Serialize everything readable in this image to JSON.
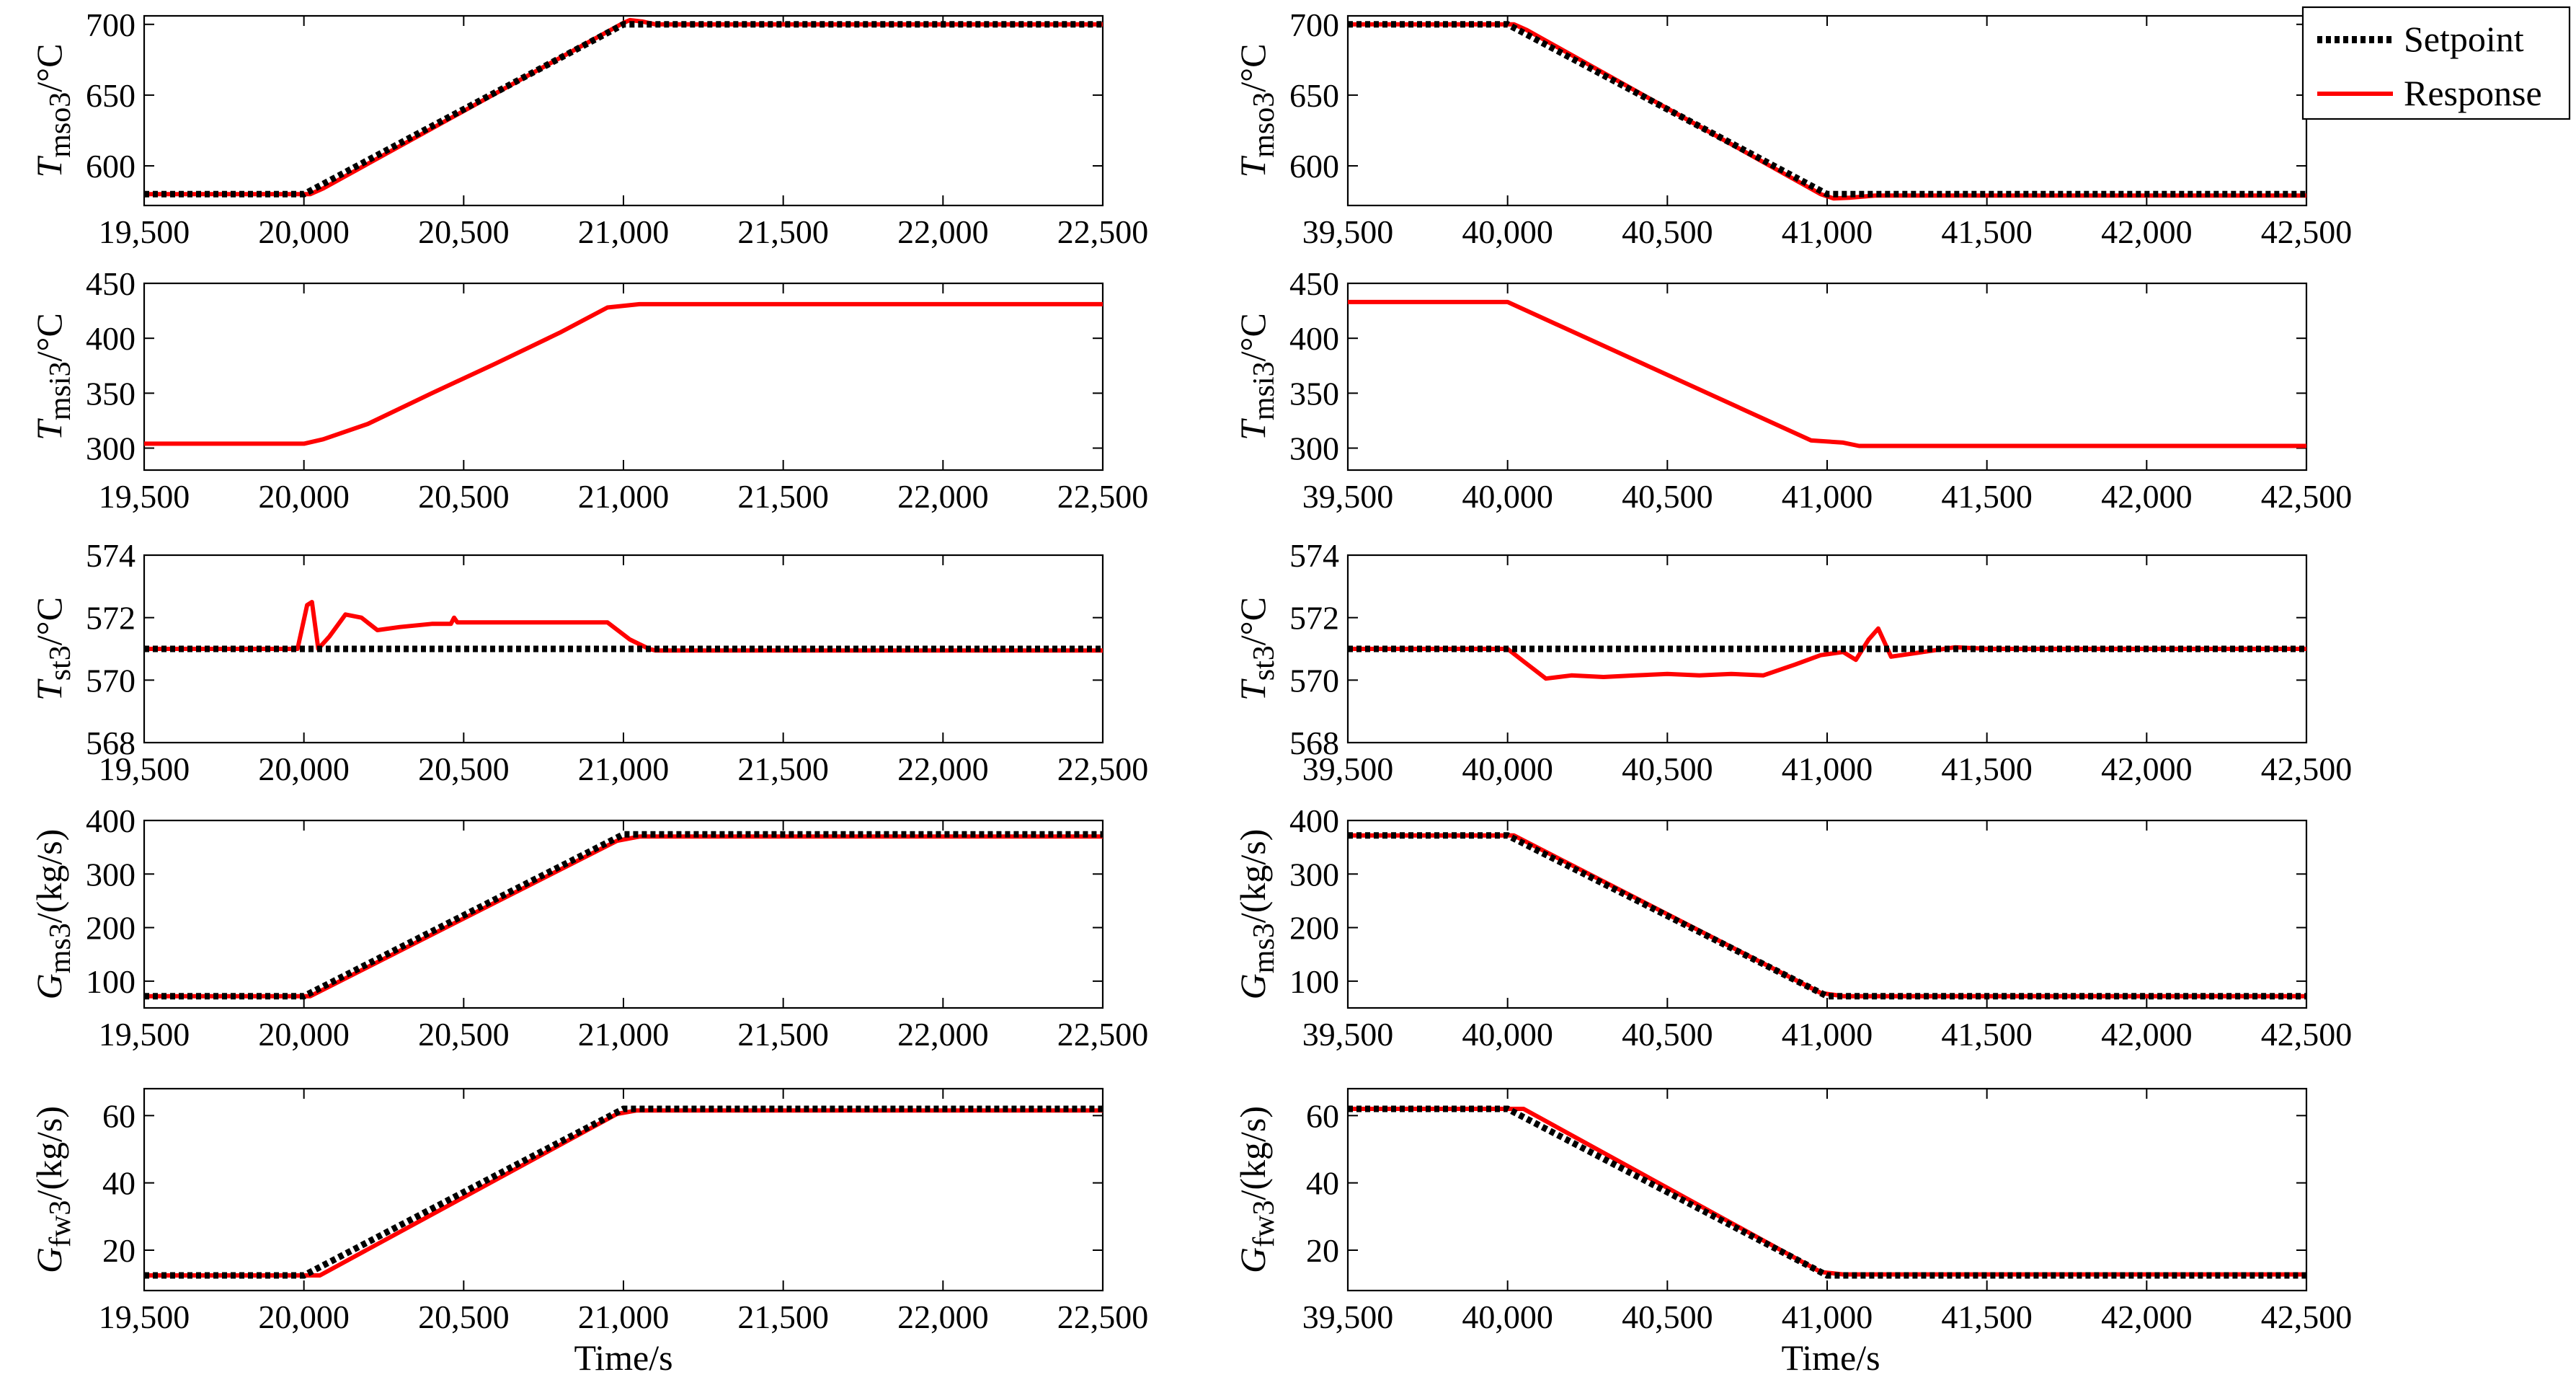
{
  "legend": {
    "setpoint_label": "Setpoint",
    "response_label": "Response",
    "setpoint_color": "#000000",
    "response_color": "#ff0000"
  },
  "xlabel": "Time/s",
  "chart_data": [
    {
      "type": "line",
      "column": 0,
      "row": 0,
      "ylabel_sym": "T",
      "ylabel_sub": "mso3",
      "ylabel_unit": "/°C",
      "xlim": [
        19500,
        22500
      ],
      "xticks": [
        19500,
        20000,
        20500,
        21000,
        21500,
        22000,
        22500
      ],
      "xtick_labels": [
        "19,500",
        "20,000",
        "20,500",
        "21,000",
        "21,500",
        "22,000",
        "22,500"
      ],
      "ylim": [
        572,
        706
      ],
      "yticks": [
        600,
        650,
        700
      ],
      "ytick_labels": [
        "600",
        "650",
        "700"
      ],
      "series": [
        {
          "name": "Setpoint",
          "style": "dotted",
          "x": [
            19500,
            20000,
            21000,
            22500
          ],
          "y": [
            580,
            580,
            700,
            700
          ]
        },
        {
          "name": "Response",
          "style": "solid",
          "x": [
            19500,
            20020,
            20060,
            21000,
            21020,
            21060,
            21100,
            22500
          ],
          "y": [
            580,
            580,
            584,
            701,
            703,
            702,
            700,
            700
          ]
        }
      ]
    },
    {
      "type": "line",
      "column": 0,
      "row": 1,
      "ylabel_sym": "T",
      "ylabel_sub": "msi3",
      "ylabel_unit": "/°C",
      "xlim": [
        19500,
        22500
      ],
      "xticks": [
        19500,
        20000,
        20500,
        21000,
        21500,
        22000,
        22500
      ],
      "xtick_labels": [
        "19,500",
        "20,000",
        "20,500",
        "21,000",
        "21,500",
        "22,000",
        "22,500"
      ],
      "ylim": [
        280,
        450
      ],
      "yticks": [
        300,
        350,
        400,
        450
      ],
      "ytick_labels": [
        "300",
        "350",
        "400",
        "450"
      ],
      "series": [
        {
          "name": "Response",
          "style": "solid",
          "x": [
            19500,
            20000,
            20060,
            20200,
            20400,
            20600,
            20800,
            20950,
            21050,
            22500
          ],
          "y": [
            304,
            304,
            308,
            322,
            350,
            377,
            405,
            428,
            431,
            431
          ]
        }
      ]
    },
    {
      "type": "line",
      "column": 0,
      "row": 2,
      "ylabel_sym": "T",
      "ylabel_sub": "st3",
      "ylabel_unit": "/°C",
      "xlim": [
        19500,
        22500
      ],
      "xticks": [
        19500,
        20000,
        20500,
        21000,
        21500,
        22000,
        22500
      ],
      "xtick_labels": [
        "19,500",
        "20,000",
        "20,500",
        "21,000",
        "21,500",
        "22,000",
        "22,500"
      ],
      "ylim": [
        568,
        574
      ],
      "yticks": [
        568,
        570,
        572,
        574
      ],
      "ytick_labels": [
        "568",
        "570",
        "572",
        "574"
      ],
      "series": [
        {
          "name": "Setpoint",
          "style": "dotted",
          "x": [
            19500,
            22500
          ],
          "y": [
            571,
            571
          ]
        },
        {
          "name": "Response",
          "style": "solid",
          "x": [
            19500,
            19980,
            20010,
            20025,
            20045,
            20080,
            20130,
            20180,
            20230,
            20300,
            20400,
            20460,
            20470,
            20480,
            20950,
            21020,
            21080,
            21100,
            22500
          ],
          "y": [
            571,
            571,
            572.4,
            572.5,
            571,
            571.4,
            572.1,
            572.0,
            571.6,
            571.7,
            571.8,
            571.8,
            572.0,
            571.85,
            571.85,
            571.3,
            571,
            570.95,
            570.95
          ]
        }
      ]
    },
    {
      "type": "line",
      "column": 0,
      "row": 3,
      "ylabel_sym": "G",
      "ylabel_sub": "ms3",
      "ylabel_unit": "/(kg/s)",
      "xlim": [
        19500,
        22500
      ],
      "xticks": [
        19500,
        20000,
        20500,
        21000,
        21500,
        22000,
        22500
      ],
      "xtick_labels": [
        "19,500",
        "20,000",
        "20,500",
        "21,000",
        "21,500",
        "22,000",
        "22,500"
      ],
      "ylim": [
        50,
        400
      ],
      "yticks": [
        100,
        200,
        300,
        400
      ],
      "ytick_labels": [
        "100",
        "200",
        "300",
        "400"
      ],
      "series": [
        {
          "name": "Setpoint",
          "style": "dotted",
          "x": [
            19500,
            20000,
            21000,
            22500
          ],
          "y": [
            72,
            72,
            374,
            374
          ]
        },
        {
          "name": "Response",
          "style": "solid",
          "x": [
            19500,
            20020,
            20980,
            21050,
            22500
          ],
          "y": [
            72,
            72,
            362,
            370,
            370
          ]
        }
      ]
    },
    {
      "type": "line",
      "column": 0,
      "row": 4,
      "ylabel_sym": "G",
      "ylabel_sub": "fw3",
      "ylabel_unit": "/(kg/s)",
      "xlim": [
        19500,
        22500
      ],
      "xticks": [
        19500,
        20000,
        20500,
        21000,
        21500,
        22000,
        22500
      ],
      "xtick_labels": [
        "19,500",
        "20,000",
        "20,500",
        "21,000",
        "21,500",
        "22,000",
        "22,500"
      ],
      "ylim": [
        8,
        68
      ],
      "yticks": [
        20,
        40,
        60
      ],
      "ytick_labels": [
        "20",
        "40",
        "60"
      ],
      "series": [
        {
          "name": "Setpoint",
          "style": "dotted",
          "x": [
            19500,
            20000,
            21000,
            22500
          ],
          "y": [
            12.5,
            12.5,
            62,
            62
          ]
        },
        {
          "name": "Response",
          "style": "solid",
          "x": [
            19500,
            20050,
            20980,
            21040,
            22500
          ],
          "y": [
            12.5,
            12.5,
            60.5,
            61.5,
            61.5
          ]
        }
      ]
    },
    {
      "type": "line",
      "column": 1,
      "row": 0,
      "ylabel_sym": "T",
      "ylabel_sub": "mso3",
      "ylabel_unit": "/°C",
      "xlim": [
        39500,
        42500
      ],
      "xticks": [
        39500,
        40000,
        40500,
        41000,
        41500,
        42000,
        42500
      ],
      "xtick_labels": [
        "39,500",
        "40,000",
        "40,500",
        "41,000",
        "41,500",
        "42,000",
        "42,500"
      ],
      "ylim": [
        572,
        706
      ],
      "yticks": [
        600,
        650,
        700
      ],
      "ytick_labels": [
        "600",
        "650",
        "700"
      ],
      "series": [
        {
          "name": "Setpoint",
          "style": "dotted",
          "x": [
            39500,
            40000,
            41000,
            42500
          ],
          "y": [
            700,
            700,
            580,
            580
          ]
        },
        {
          "name": "Response",
          "style": "solid",
          "x": [
            39500,
            40020,
            40060,
            40980,
            41020,
            41070,
            41150,
            42500
          ],
          "y": [
            700,
            700,
            696,
            580,
            577,
            577.5,
            579,
            579
          ]
        }
      ]
    },
    {
      "type": "line",
      "column": 1,
      "row": 1,
      "ylabel_sym": "T",
      "ylabel_sub": "msi3",
      "ylabel_unit": "/°C",
      "xlim": [
        39500,
        42500
      ],
      "xticks": [
        39500,
        40000,
        40500,
        41000,
        41500,
        42000,
        42500
      ],
      "xtick_labels": [
        "39,500",
        "40,000",
        "40,500",
        "41,000",
        "41,500",
        "42,000",
        "42,500"
      ],
      "ylim": [
        280,
        450
      ],
      "yticks": [
        300,
        350,
        400,
        450
      ],
      "ytick_labels": [
        "300",
        "350",
        "400",
        "450"
      ],
      "series": [
        {
          "name": "Response",
          "style": "solid",
          "x": [
            39500,
            40000,
            40950,
            41050,
            41100,
            42500
          ],
          "y": [
            433,
            433,
            307,
            305,
            302,
            302
          ]
        }
      ]
    },
    {
      "type": "line",
      "column": 1,
      "row": 2,
      "ylabel_sym": "T",
      "ylabel_sub": "st3",
      "ylabel_unit": "/°C",
      "xlim": [
        39500,
        42500
      ],
      "xticks": [
        39500,
        40000,
        40500,
        41000,
        41500,
        42000,
        42500
      ],
      "xtick_labels": [
        "39,500",
        "40,000",
        "40,500",
        "41,000",
        "41,500",
        "42,000",
        "42,500"
      ],
      "ylim": [
        568,
        574
      ],
      "yticks": [
        568,
        570,
        572,
        574
      ],
      "ytick_labels": [
        "568",
        "570",
        "572",
        "574"
      ],
      "series": [
        {
          "name": "Setpoint",
          "style": "dotted",
          "x": [
            39500,
            42500
          ],
          "y": [
            571,
            571
          ]
        },
        {
          "name": "Response",
          "style": "solid",
          "x": [
            39500,
            40000,
            40050,
            40120,
            40200,
            40300,
            40400,
            40500,
            40600,
            40700,
            40800,
            40900,
            40980,
            41050,
            41090,
            41130,
            41160,
            41200,
            41300,
            41400,
            41500,
            42500
          ],
          "y": [
            571,
            571,
            570.6,
            570.05,
            570.15,
            570.1,
            570.15,
            570.2,
            570.15,
            570.2,
            570.15,
            570.5,
            570.8,
            570.9,
            570.65,
            571.3,
            571.65,
            570.75,
            570.9,
            571.05,
            571,
            571
          ]
        }
      ]
    },
    {
      "type": "line",
      "column": 1,
      "row": 3,
      "ylabel_sym": "G",
      "ylabel_sub": "ms3",
      "ylabel_unit": "/(kg/s)",
      "xlim": [
        39500,
        42500
      ],
      "xticks": [
        39500,
        40000,
        40500,
        41000,
        41500,
        42000,
        42500
      ],
      "xtick_labels": [
        "39,500",
        "40,000",
        "40,500",
        "41,000",
        "41,500",
        "42,000",
        "42,500"
      ],
      "ylim": [
        50,
        400
      ],
      "yticks": [
        100,
        200,
        300,
        400
      ],
      "ytick_labels": [
        "100",
        "200",
        "300",
        "400"
      ],
      "series": [
        {
          "name": "Setpoint",
          "style": "dotted",
          "x": [
            39500,
            40000,
            41000,
            42500
          ],
          "y": [
            372,
            372,
            72,
            72
          ]
        },
        {
          "name": "Response",
          "style": "solid",
          "x": [
            39500,
            40020,
            40980,
            41050,
            42500
          ],
          "y": [
            372,
            372,
            78,
            72,
            72
          ]
        }
      ]
    },
    {
      "type": "line",
      "column": 1,
      "row": 4,
      "ylabel_sym": "G",
      "ylabel_sub": "fw3",
      "ylabel_unit": "/(kg/s)",
      "xlim": [
        39500,
        42500
      ],
      "xticks": [
        39500,
        40000,
        40500,
        41000,
        41500,
        42000,
        42500
      ],
      "xtick_labels": [
        "39,500",
        "40,000",
        "40,500",
        "41,000",
        "41,500",
        "42,000",
        "42,500"
      ],
      "ylim": [
        8,
        68
      ],
      "yticks": [
        20,
        40,
        60
      ],
      "ytick_labels": [
        "20",
        "40",
        "60"
      ],
      "series": [
        {
          "name": "Setpoint",
          "style": "dotted",
          "x": [
            39500,
            40000,
            41000,
            42500
          ],
          "y": [
            62,
            62,
            12.5,
            12.5
          ]
        },
        {
          "name": "Response",
          "style": "solid",
          "x": [
            39500,
            40050,
            40980,
            41050,
            42500
          ],
          "y": [
            62,
            62,
            13.5,
            12.8,
            12.8
          ]
        }
      ]
    }
  ]
}
